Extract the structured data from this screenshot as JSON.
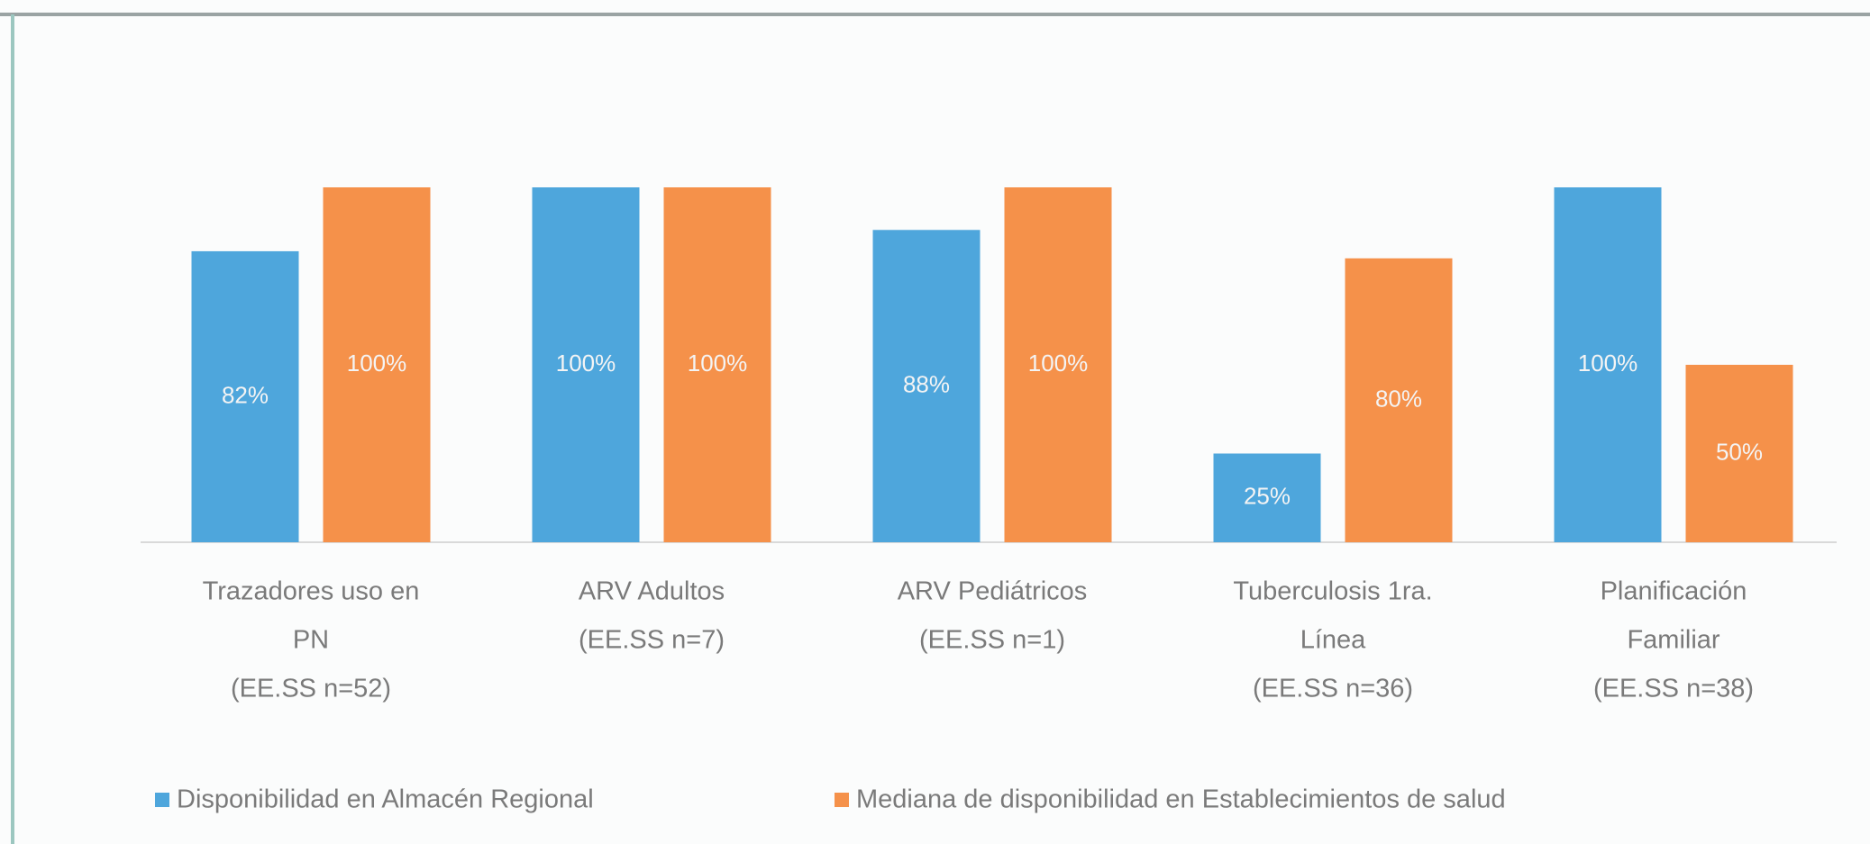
{
  "chart_data": {
    "type": "bar",
    "categories": [
      [
        "Trazadores uso en",
        "PN",
        "(EE.SS n=52)"
      ],
      [
        "ARV Adultos",
        "(EE.SS n=7)"
      ],
      [
        "ARV Pediátricos",
        "(EE.SS n=1)"
      ],
      [
        "Tuberculosis 1ra.",
        "Línea",
        "(EE.SS n=36)"
      ],
      [
        "Planificación",
        "Familiar",
        "(EE.SS n=38)"
      ]
    ],
    "series": [
      {
        "name": "Disponibilidad en Almacén Regional",
        "color": "#4ea6dc",
        "values": [
          82,
          100,
          88,
          25,
          100
        ],
        "value_labels": [
          "82%",
          "100%",
          "88%",
          "25%",
          "100%"
        ]
      },
      {
        "name": "Mediana de disponibilidad en Establecimientos de salud",
        "color": "#f5914a",
        "values": [
          100,
          100,
          100,
          80,
          50
        ],
        "value_labels": [
          "100%",
          "100%",
          "100%",
          "80%",
          "50%"
        ]
      }
    ],
    "legend": "bottom"
  }
}
